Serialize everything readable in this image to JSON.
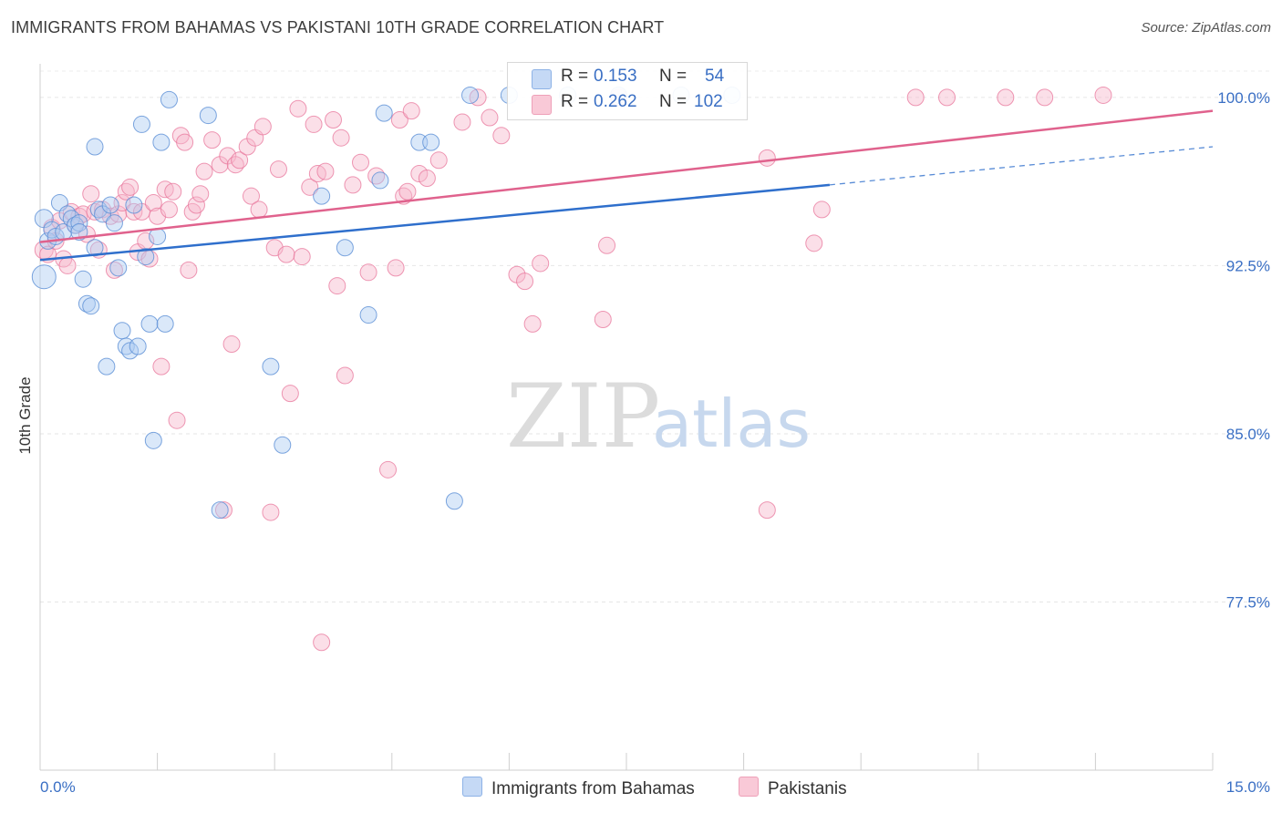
{
  "header": {
    "title": "IMMIGRANTS FROM BAHAMAS VS PAKISTANI 10TH GRADE CORRELATION CHART",
    "source": "Source: ZipAtlas.com"
  },
  "watermark": {
    "zip": "ZIP",
    "atlas": "atlas"
  },
  "legend": {
    "rows": [
      {
        "r_label": "R =",
        "r_value": "0.153",
        "n_label": "N =",
        "n_value": "54",
        "color": "#aecbf2"
      },
      {
        "r_label": "R =",
        "r_value": "0.262",
        "n_label": "N =",
        "n_value": "102",
        "color": "#f7b8cb"
      }
    ]
  },
  "bottom_legend": [
    {
      "label": "Immigrants from Bahamas",
      "color": "#aecbf2"
    },
    {
      "label": "Pakistanis",
      "color": "#f7b8cb"
    }
  ],
  "chart_data": {
    "type": "scatter",
    "title": "IMMIGRANTS FROM BAHAMAS VS PAKISTANI 10TH GRADE CORRELATION CHART",
    "ylabel": "10th Grade",
    "xlim": [
      0.0,
      15.0
    ],
    "ylim": [
      70.0,
      101.5
    ],
    "x_tick_labels": [
      "0.0%",
      "15.0%"
    ],
    "y_ticks": [
      77.5,
      85.0,
      92.5,
      100.0
    ],
    "y_tick_labels": [
      "77.5%",
      "85.0%",
      "92.5%",
      "100.0%"
    ],
    "grid": true,
    "colors": {
      "bahamas": "#5b8fd6",
      "bahamas_fill": "#aecbf2",
      "pakistan": "#e8759b",
      "pakistan_fill": "#f7b8cb",
      "bahamas_line": "#2f6fcc",
      "pakistan_line": "#e0628d",
      "axis_text": "#3a6fc4"
    },
    "trendlines": [
      {
        "series": "Immigrants from Bahamas",
        "x": [
          0.0,
          10.1
        ],
        "y": [
          92.75,
          96.1
        ],
        "dashed_x": [
          10.1,
          15.0
        ],
        "dashed_y": [
          96.1,
          97.8
        ]
      },
      {
        "series": "Pakistanis",
        "x": [
          0.0,
          15.0
        ],
        "y": [
          93.55,
          99.4
        ]
      }
    ],
    "series": [
      {
        "name": "Immigrants from Bahamas",
        "points": [
          [
            0.05,
            94.6,
            10
          ],
          [
            0.05,
            92.0,
            13
          ],
          [
            0.1,
            93.6,
            9
          ],
          [
            0.15,
            94.1,
            9
          ],
          [
            0.2,
            93.8,
            9
          ],
          [
            0.25,
            95.3,
            9
          ],
          [
            0.3,
            94.0,
            9
          ],
          [
            0.35,
            94.8,
            9
          ],
          [
            0.4,
            94.6,
            9
          ],
          [
            0.45,
            94.3,
            9
          ],
          [
            0.5,
            94.4,
            9
          ],
          [
            0.5,
            94.0,
            9
          ],
          [
            0.55,
            91.9,
            9
          ],
          [
            0.6,
            90.8,
            9
          ],
          [
            0.65,
            90.7,
            9
          ],
          [
            0.7,
            97.8,
            9
          ],
          [
            0.7,
            93.3,
            9
          ],
          [
            0.75,
            95.0,
            9
          ],
          [
            0.8,
            94.8,
            9
          ],
          [
            0.85,
            88.0,
            9
          ],
          [
            0.9,
            95.2,
            9
          ],
          [
            0.95,
            94.4,
            9
          ],
          [
            1.0,
            92.4,
            9
          ],
          [
            1.05,
            89.6,
            9
          ],
          [
            1.1,
            88.9,
            9
          ],
          [
            1.15,
            88.7,
            9
          ],
          [
            1.2,
            95.2,
            9
          ],
          [
            1.25,
            88.9,
            9
          ],
          [
            1.3,
            98.8,
            9
          ],
          [
            1.35,
            92.9,
            9
          ],
          [
            1.4,
            89.9,
            9
          ],
          [
            1.45,
            84.7,
            9
          ],
          [
            1.5,
            93.8,
            9
          ],
          [
            1.55,
            98.0,
            9
          ],
          [
            1.6,
            89.9,
            9
          ],
          [
            1.65,
            99.9,
            9
          ],
          [
            2.15,
            99.2,
            9
          ],
          [
            2.3,
            81.6,
            9
          ],
          [
            2.95,
            88.0,
            9
          ],
          [
            3.1,
            84.5,
            9
          ],
          [
            3.6,
            95.6,
            9
          ],
          [
            3.9,
            93.3,
            9
          ],
          [
            4.2,
            90.3,
            9
          ],
          [
            4.35,
            96.3,
            9
          ],
          [
            4.4,
            99.3,
            9
          ],
          [
            4.85,
            98.0,
            9
          ],
          [
            5.0,
            98.0,
            9
          ],
          [
            5.3,
            82.0,
            9
          ],
          [
            5.5,
            100.1,
            9
          ],
          [
            6.0,
            100.1,
            9
          ],
          [
            6.75,
            100.1,
            9
          ],
          [
            7.4,
            100.1,
            9
          ],
          [
            8.2,
            100.1,
            9
          ],
          [
            8.85,
            100.1,
            9
          ]
        ]
      },
      {
        "name": "Pakistanis",
        "points": [
          [
            0.05,
            93.2,
            10
          ],
          [
            0.1,
            93.0,
            9
          ],
          [
            0.15,
            94.2,
            9
          ],
          [
            0.2,
            93.6,
            9
          ],
          [
            0.25,
            94.5,
            9
          ],
          [
            0.3,
            92.8,
            9
          ],
          [
            0.35,
            92.5,
            9
          ],
          [
            0.4,
            94.9,
            9
          ],
          [
            0.45,
            94.3,
            9
          ],
          [
            0.5,
            94.7,
            9
          ],
          [
            0.55,
            94.8,
            9
          ],
          [
            0.6,
            93.9,
            9
          ],
          [
            0.65,
            95.7,
            9
          ],
          [
            0.7,
            94.9,
            9
          ],
          [
            0.75,
            93.2,
            9
          ],
          [
            0.8,
            95.0,
            9
          ],
          [
            0.9,
            94.7,
            9
          ],
          [
            0.95,
            92.3,
            9
          ],
          [
            1.0,
            94.8,
            9
          ],
          [
            1.05,
            95.3,
            9
          ],
          [
            1.1,
            95.8,
            9
          ],
          [
            1.15,
            96.0,
            9
          ],
          [
            1.2,
            94.9,
            9
          ],
          [
            1.25,
            93.1,
            9
          ],
          [
            1.3,
            94.9,
            9
          ],
          [
            1.35,
            93.6,
            9
          ],
          [
            1.4,
            92.8,
            9
          ],
          [
            1.45,
            95.3,
            9
          ],
          [
            1.5,
            94.7,
            9
          ],
          [
            1.55,
            88.0,
            9
          ],
          [
            1.6,
            95.9,
            9
          ],
          [
            1.65,
            95.0,
            9
          ],
          [
            1.7,
            95.8,
            9
          ],
          [
            1.75,
            85.6,
            9
          ],
          [
            1.8,
            98.3,
            9
          ],
          [
            1.85,
            98.0,
            9
          ],
          [
            1.9,
            92.3,
            9
          ],
          [
            1.95,
            94.9,
            9
          ],
          [
            2.0,
            95.2,
            9
          ],
          [
            2.05,
            95.7,
            9
          ],
          [
            2.1,
            96.7,
            9
          ],
          [
            2.2,
            98.1,
            9
          ],
          [
            2.3,
            97.0,
            9
          ],
          [
            2.35,
            81.6,
            9
          ],
          [
            2.4,
            97.4,
            9
          ],
          [
            2.45,
            89.0,
            9
          ],
          [
            2.5,
            97.0,
            9
          ],
          [
            2.55,
            97.2,
            9
          ],
          [
            2.65,
            97.8,
            9
          ],
          [
            2.7,
            95.6,
            9
          ],
          [
            2.75,
            98.2,
            9
          ],
          [
            2.8,
            95.0,
            9
          ],
          [
            2.85,
            98.7,
            9
          ],
          [
            2.95,
            81.5,
            9
          ],
          [
            3.0,
            93.3,
            9
          ],
          [
            3.05,
            96.8,
            9
          ],
          [
            3.15,
            93.0,
            9
          ],
          [
            3.2,
            86.8,
            9
          ],
          [
            3.3,
            99.5,
            9
          ],
          [
            3.35,
            92.9,
            9
          ],
          [
            3.45,
            96.0,
            9
          ],
          [
            3.5,
            98.8,
            9
          ],
          [
            3.55,
            96.6,
            9
          ],
          [
            3.6,
            75.7,
            9
          ],
          [
            3.65,
            96.7,
            9
          ],
          [
            3.75,
            99.0,
            9
          ],
          [
            3.8,
            91.6,
            9
          ],
          [
            3.85,
            98.2,
            9
          ],
          [
            3.9,
            87.6,
            9
          ],
          [
            4.0,
            96.1,
            9
          ],
          [
            4.1,
            97.1,
            9
          ],
          [
            4.2,
            92.2,
            9
          ],
          [
            4.3,
            96.5,
            9
          ],
          [
            4.45,
            83.4,
            9
          ],
          [
            4.55,
            92.4,
            9
          ],
          [
            4.6,
            99.0,
            9
          ],
          [
            4.65,
            95.6,
            9
          ],
          [
            4.7,
            95.8,
            9
          ],
          [
            4.75,
            99.4,
            9
          ],
          [
            4.85,
            96.6,
            9
          ],
          [
            4.95,
            96.4,
            9
          ],
          [
            5.1,
            97.2,
            9
          ],
          [
            5.4,
            98.9,
            9
          ],
          [
            5.6,
            100.0,
            9
          ],
          [
            5.75,
            99.1,
            9
          ],
          [
            5.9,
            98.3,
            9
          ],
          [
            6.1,
            92.1,
            9
          ],
          [
            6.2,
            91.8,
            9
          ],
          [
            6.3,
            89.9,
            9
          ],
          [
            6.4,
            92.6,
            9
          ],
          [
            7.2,
            90.1,
            9
          ],
          [
            7.25,
            93.4,
            9
          ],
          [
            7.4,
            100.0,
            9
          ],
          [
            9.3,
            97.3,
            9
          ],
          [
            9.3,
            81.6,
            9
          ],
          [
            9.9,
            93.5,
            9
          ],
          [
            10.0,
            95.0,
            9
          ],
          [
            11.2,
            100.0,
            9
          ],
          [
            11.6,
            100.0,
            9
          ],
          [
            12.35,
            100.0,
            9
          ],
          [
            12.85,
            100.0,
            9
          ],
          [
            13.6,
            100.1,
            9
          ]
        ]
      }
    ]
  }
}
